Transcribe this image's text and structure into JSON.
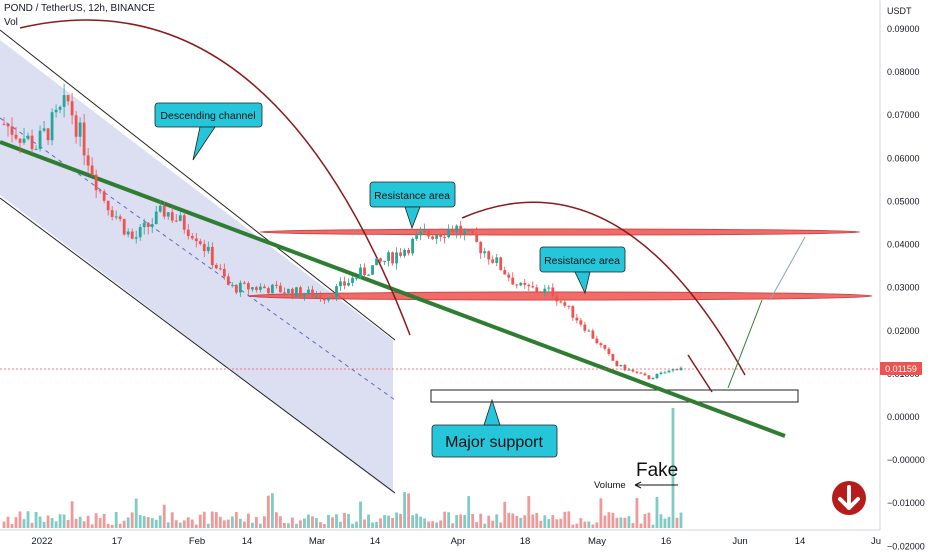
{
  "header": {
    "title": "POND / TetherUS, 12h, BINANCE",
    "vol_label": "Vol"
  },
  "price_axis": {
    "unit": "USDT",
    "ticks": [
      "0.09000",
      "0.08000",
      "0.07000",
      "0.06000",
      "0.05000",
      "0.04000",
      "0.03000",
      "0.02000",
      "0.01000",
      "0.00000",
      "−0.00000",
      "−0.01000",
      "−0.02000"
    ],
    "last_price": "0.01159",
    "last_price_color": "#ef5350"
  },
  "time_axis": {
    "ticks": [
      "2022",
      "17",
      "Feb",
      "14",
      "Mar",
      "14",
      "Apr",
      "18",
      "May",
      "16",
      "Jun",
      "14",
      "Ju"
    ]
  },
  "annotations": {
    "descending_channel": "Descending channel",
    "resistance_upper": "Resistance area",
    "resistance_lower": "Resistance area",
    "major_support": "Major support",
    "fake": "Fake",
    "volume": "Volume"
  },
  "colors": {
    "up": "#26a69a",
    "down": "#ef5350",
    "channel_fill": "#9fa8da",
    "trendline": "#2e7d32",
    "resistance": "#ef5350",
    "arc": "#8b1a1a",
    "callout": "#26c6da",
    "badge": "#b71c1c"
  },
  "chart_data": {
    "type": "candlestick",
    "title": "POND / TetherUS, 12h, BINANCE",
    "y_unit": "USDT",
    "ylim": [
      -0.024,
      0.095
    ],
    "x": [
      "2022-01-01",
      "2022-01-10",
      "2022-01-17",
      "2022-01-24",
      "2022-02-01",
      "2022-02-07",
      "2022-02-14",
      "2022-02-21",
      "2022-03-01",
      "2022-03-07",
      "2022-03-14",
      "2022-03-21",
      "2022-03-28",
      "2022-04-01",
      "2022-04-05",
      "2022-04-11",
      "2022-04-18",
      "2022-04-25",
      "2022-05-01",
      "2022-05-09",
      "2022-05-16",
      "2022-05-19"
    ],
    "close": [
      0.068,
      0.063,
      0.073,
      0.052,
      0.041,
      0.048,
      0.042,
      0.03,
      0.03,
      0.029,
      0.028,
      0.033,
      0.037,
      0.042,
      0.044,
      0.038,
      0.03,
      0.029,
      0.021,
      0.012,
      0.009,
      0.0116
    ],
    "last_price": 0.01159,
    "levels": {
      "resistance_upper": 0.043,
      "resistance_lower": 0.0285,
      "major_support": 0.005
    },
    "grid": false,
    "volume_pane": true
  }
}
